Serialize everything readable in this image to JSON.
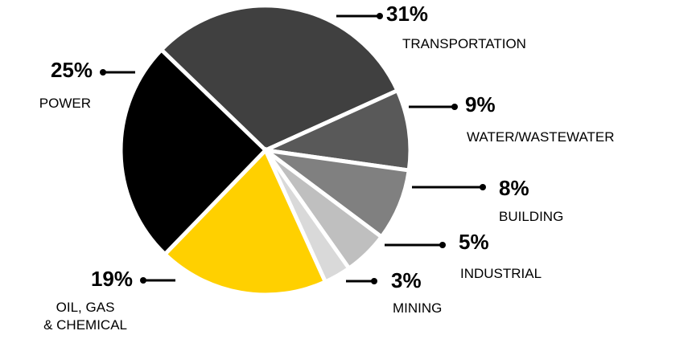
{
  "chart_data": {
    "type": "pie",
    "categories": [
      "TRANSPORTATION",
      "WATER/WASTEWATER",
      "BUILDING",
      "INDUSTRIAL",
      "MINING",
      "OIL, GAS\n& CHEMICAL",
      "POWER"
    ],
    "values": [
      31,
      9,
      8,
      5,
      3,
      19,
      25
    ],
    "value_labels": [
      "31%",
      "9%",
      "8%",
      "5%",
      "3%",
      "19%",
      "25%"
    ],
    "colors": [
      "#404040",
      "#595959",
      "#808080",
      "#bfbfbf",
      "#d9d9d9",
      "#ffd000",
      "#000000"
    ]
  }
}
